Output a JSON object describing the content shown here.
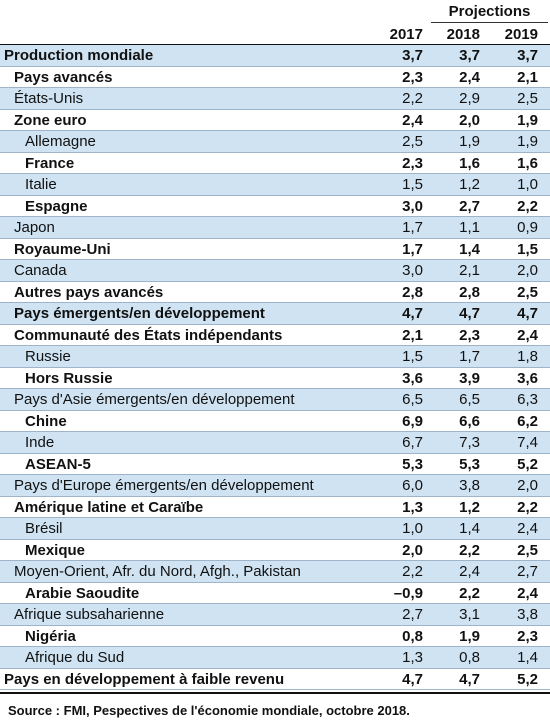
{
  "header": {
    "projections_label": "Projections",
    "years": [
      "2017",
      "2018",
      "2019"
    ]
  },
  "rows": [
    {
      "name": "Production mondiale",
      "values": [
        "3,7",
        "3,7",
        "3,7"
      ],
      "level": 0,
      "bold": true,
      "shaded": true
    },
    {
      "name": "Pays avancés",
      "values": [
        "2,3",
        "2,4",
        "2,1"
      ],
      "level": 1,
      "bold": true,
      "shaded": false
    },
    {
      "name": "États-Unis",
      "values": [
        "2,2",
        "2,9",
        "2,5"
      ],
      "level": 1,
      "bold": false,
      "shaded": true
    },
    {
      "name": "Zone euro",
      "values": [
        "2,4",
        "2,0",
        "1,9"
      ],
      "level": 1,
      "bold": true,
      "shaded": false
    },
    {
      "name": "Allemagne",
      "values": [
        "2,5",
        "1,9",
        "1,9"
      ],
      "level": 2,
      "bold": false,
      "shaded": true
    },
    {
      "name": "France",
      "values": [
        "2,3",
        "1,6",
        "1,6"
      ],
      "level": 2,
      "bold": true,
      "shaded": false
    },
    {
      "name": "Italie",
      "values": [
        "1,5",
        "1,2",
        "1,0"
      ],
      "level": 2,
      "bold": false,
      "shaded": true
    },
    {
      "name": "Espagne",
      "values": [
        "3,0",
        "2,7",
        "2,2"
      ],
      "level": 2,
      "bold": true,
      "shaded": false
    },
    {
      "name": "Japon",
      "values": [
        "1,7",
        "1,1",
        "0,9"
      ],
      "level": 1,
      "bold": false,
      "shaded": true
    },
    {
      "name": "Royaume-Uni",
      "values": [
        "1,7",
        "1,4",
        "1,5"
      ],
      "level": 1,
      "bold": true,
      "shaded": false
    },
    {
      "name": "Canada",
      "values": [
        "3,0",
        "2,1",
        "2,0"
      ],
      "level": 1,
      "bold": false,
      "shaded": true
    },
    {
      "name": "Autres pays avancés",
      "values": [
        "2,8",
        "2,8",
        "2,5"
      ],
      "level": 1,
      "bold": true,
      "shaded": false
    },
    {
      "name": "Pays émergents/en développement",
      "values": [
        "4,7",
        "4,7",
        "4,7"
      ],
      "level": 1,
      "bold": true,
      "shaded": true
    },
    {
      "name": "Communauté des États indépendants",
      "values": [
        "2,1",
        "2,3",
        "2,4"
      ],
      "level": 1,
      "bold": true,
      "shaded": false
    },
    {
      "name": "Russie",
      "values": [
        "1,5",
        "1,7",
        "1,8"
      ],
      "level": 2,
      "bold": false,
      "shaded": true
    },
    {
      "name": "Hors Russie",
      "values": [
        "3,6",
        "3,9",
        "3,6"
      ],
      "level": 2,
      "bold": true,
      "shaded": false
    },
    {
      "name": "Pays d'Asie émergents/en développement",
      "values": [
        "6,5",
        "6,5",
        "6,3"
      ],
      "level": 1,
      "bold": false,
      "shaded": true
    },
    {
      "name": "Chine",
      "values": [
        "6,9",
        "6,6",
        "6,2"
      ],
      "level": 2,
      "bold": true,
      "shaded": false
    },
    {
      "name": "Inde",
      "values": [
        "6,7",
        "7,3",
        "7,4"
      ],
      "level": 2,
      "bold": false,
      "shaded": true
    },
    {
      "name": "ASEAN-5",
      "values": [
        "5,3",
        "5,3",
        "5,2"
      ],
      "level": 2,
      "bold": true,
      "shaded": false
    },
    {
      "name": "Pays d'Europe émergents/en développement",
      "values": [
        "6,0",
        "3,8",
        "2,0"
      ],
      "level": 1,
      "bold": false,
      "shaded": true
    },
    {
      "name": "Amérique latine et Caraïbe",
      "values": [
        "1,3",
        "1,2",
        "2,2"
      ],
      "level": 1,
      "bold": true,
      "shaded": false
    },
    {
      "name": "Brésil",
      "values": [
        "1,0",
        "1,4",
        "2,4"
      ],
      "level": 2,
      "bold": false,
      "shaded": true
    },
    {
      "name": "Mexique",
      "values": [
        "2,0",
        "2,2",
        "2,5"
      ],
      "level": 2,
      "bold": true,
      "shaded": false
    },
    {
      "name": "Moyen-Orient, Afr. du Nord, Afgh., Pakistan",
      "values": [
        "2,2",
        "2,4",
        "2,7"
      ],
      "level": 1,
      "bold": false,
      "shaded": true
    },
    {
      "name": "Arabie Saoudite",
      "values": [
        "–0,9",
        "2,2",
        "2,4"
      ],
      "level": 2,
      "bold": true,
      "shaded": false
    },
    {
      "name": "Afrique subsaharienne",
      "values": [
        "2,7",
        "3,1",
        "3,8"
      ],
      "level": 1,
      "bold": false,
      "shaded": true
    },
    {
      "name": "Nigéria",
      "values": [
        "0,8",
        "1,9",
        "2,3"
      ],
      "level": 2,
      "bold": true,
      "shaded": false
    },
    {
      "name": "Afrique du Sud",
      "values": [
        "1,3",
        "0,8",
        "1,4"
      ],
      "level": 2,
      "bold": false,
      "shaded": true
    },
    {
      "name": "Pays en développement à faible revenu",
      "values": [
        "4,7",
        "4,7",
        "5,2"
      ],
      "level": 0,
      "bold": true,
      "shaded": false
    }
  ],
  "source": "Source : FMI, Pespectives de l'économie mondiale, octobre 2018.",
  "colors": {
    "shaded_row": "#cfe3f2",
    "row_rule": "#9fb3c9",
    "text": "#111111"
  }
}
